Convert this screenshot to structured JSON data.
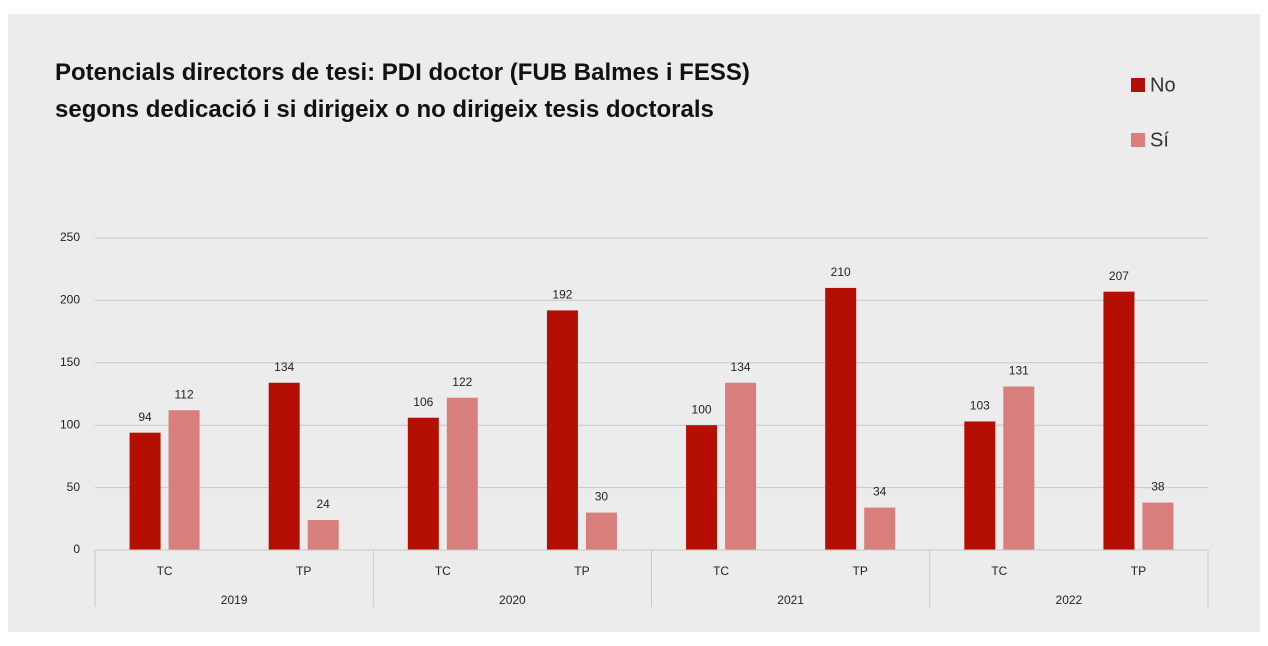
{
  "chart_data": {
    "type": "bar",
    "title": [
      "Potencials directors de tesi: PDI doctor (FUB Balmes i FESS)",
      "segons dedicació i si dirigeix o no dirigeix tesis doctorals"
    ],
    "categories": [
      "TC",
      "TP",
      "TC",
      "TP",
      "TC",
      "TP",
      "TC",
      "TP"
    ],
    "groups": [
      "2019",
      "2020",
      "2021",
      "2022"
    ],
    "series": [
      {
        "name": "No",
        "color": "#b50f04",
        "values": [
          94,
          134,
          106,
          192,
          100,
          210,
          103,
          207
        ]
      },
      {
        "name": "Sí",
        "color": "#d87f7e",
        "values": [
          112,
          24,
          122,
          30,
          134,
          34,
          131,
          38
        ]
      }
    ],
    "ylim": [
      0,
      250
    ],
    "yticks": [
      0,
      50,
      100,
      150,
      200,
      250
    ],
    "grid": true,
    "legend": "top-right"
  }
}
